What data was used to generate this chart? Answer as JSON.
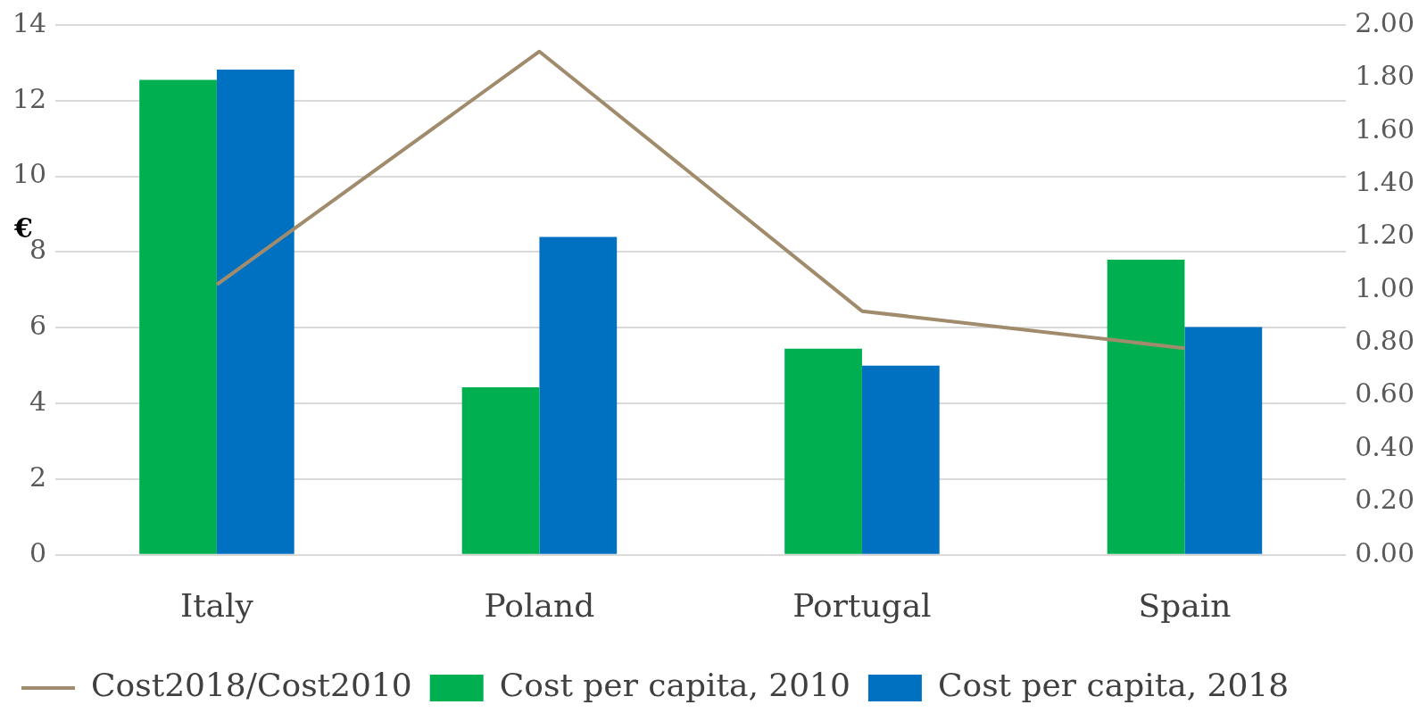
{
  "chart_data": {
    "type": "bar",
    "categories": [
      "Italy",
      "Poland",
      "Portugal",
      "Spain"
    ],
    "ylabel": "€",
    "series": [
      {
        "name": "Cost per capita, 2010",
        "color": "#00b050",
        "values": [
          12.55,
          4.43,
          5.45,
          7.8
        ]
      },
      {
        "name": "Cost per capita, 2018",
        "color": "#0070c0",
        "values": [
          12.82,
          8.4,
          5.0,
          6.02
        ]
      },
      {
        "name": "Cost2018/Cost2010",
        "type": "line",
        "axis": "y2",
        "color": "#a08c6c",
        "values": [
          1.02,
          1.9,
          0.92,
          0.78
        ]
      }
    ],
    "ylim": [
      0,
      14
    ],
    "yticks": [
      0,
      2,
      4,
      6,
      8,
      10,
      12,
      14
    ],
    "y2lim": [
      0,
      2
    ],
    "y2ticks": [
      {
        "value": 0,
        "label": "0.00"
      },
      {
        "value": 0.2,
        "label": "0.20"
      },
      {
        "value": 0.4,
        "label": "0.40"
      },
      {
        "value": 0.6,
        "label": "0.60"
      },
      {
        "value": 0.8,
        "label": "0.80"
      },
      {
        "value": 1,
        "label": "1.00"
      },
      {
        "value": 1.2,
        "label": "1.20"
      },
      {
        "value": 1.4,
        "label": "1.40"
      },
      {
        "value": 1.6,
        "label": "1.60"
      },
      {
        "value": 1.8,
        "label": "1.80"
      },
      {
        "value": 2,
        "label": "2.00"
      }
    ],
    "grid": "y",
    "legend": "bottom",
    "marker": "none",
    "line_style": "solid"
  }
}
